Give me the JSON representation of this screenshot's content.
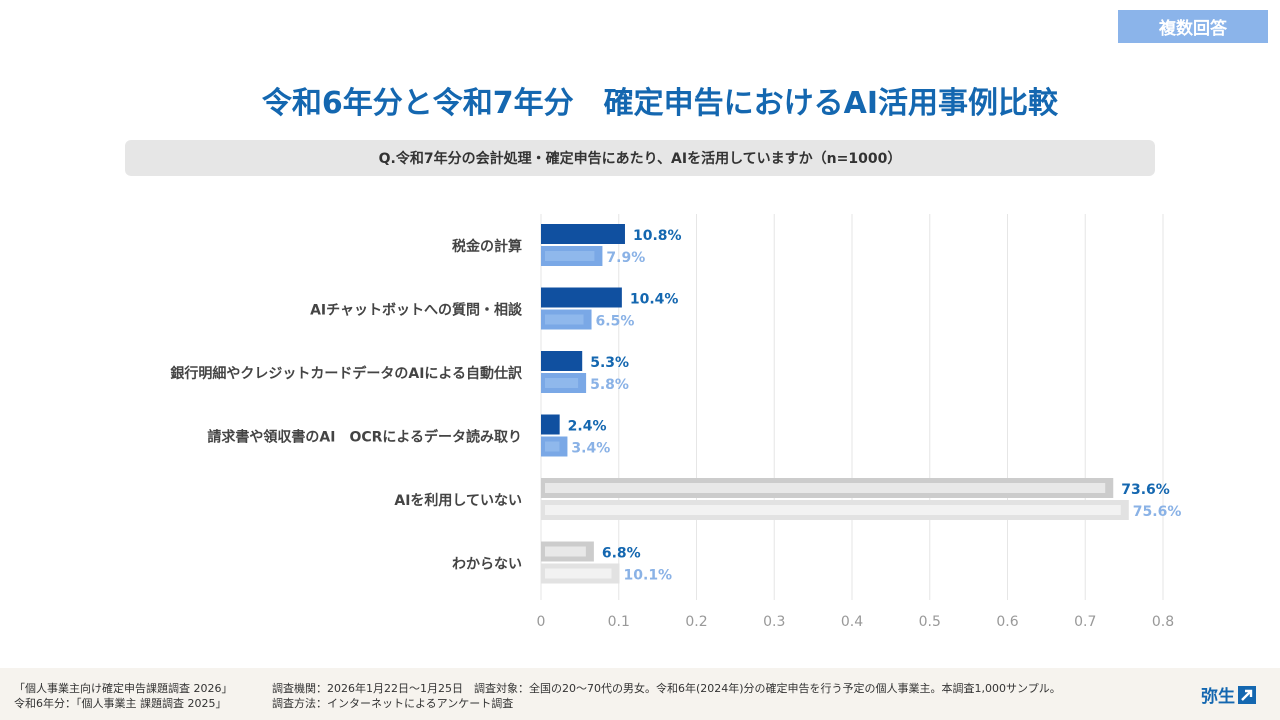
{
  "badge": "複数回答",
  "title": "令和6年分と令和7年分　確定申告におけるAI活用事例比較",
  "question": "Q.令和7年分の会計処理・確定申告にあたり、AIを活用していますか（n=1000）",
  "colors": {
    "series_2026": "#1050a0",
    "series_2025": "#7aa8e6",
    "label_2026": "#1467b0",
    "label_2025": "#8ab2e6",
    "gray_2026": "#cccccc",
    "gray_2025": "#e2e2e2"
  },
  "chart_data": {
    "type": "bar",
    "orientation": "horizontal",
    "categories": [
      "税金の計算",
      "AIチャットボットへの質問・相談",
      "銀行明細やクレジットカードデータのAIによる自動仕訳",
      "請求書や領収書のAI　OCRによるデータ読み取り",
      "AIを利用していない",
      "わからない"
    ],
    "series": [
      {
        "name": "令和7年分",
        "values": [
          0.108,
          0.104,
          0.053,
          0.024,
          0.736,
          0.068
        ],
        "labels": [
          "10.8%",
          "10.4%",
          "5.3%",
          "2.4%",
          "73.6%",
          "6.8%"
        ]
      },
      {
        "name": "令和6年分",
        "values": [
          0.079,
          0.065,
          0.058,
          0.034,
          0.756,
          0.101
        ],
        "labels": [
          "7.9%",
          "6.5%",
          "5.8%",
          "3.4%",
          "75.6%",
          "10.1%"
        ]
      }
    ],
    "gray_categories": [
      4,
      5
    ],
    "xlim": [
      0,
      0.8
    ],
    "xticks": [
      "0",
      "0.1",
      "0.2",
      "0.3",
      "0.4",
      "0.5",
      "0.6",
      "0.7",
      "0.8"
    ],
    "grid": true
  },
  "footer": {
    "source_2026": "「個人事業主向け確定申告課題調査 2026」",
    "source_2025": "令和6年分：「個人事業主 課題調査 2025」",
    "survey_line1": "調査機関：2026年1月22日〜1月25日　調査対象：全国の20〜70代の男女。令和6年(2024年)分の確定申告を行う予定の個人事業主。本調査1,000サンプル。",
    "survey_line2": "調査方法：インターネットによるアンケート調査",
    "logo": "弥生"
  }
}
